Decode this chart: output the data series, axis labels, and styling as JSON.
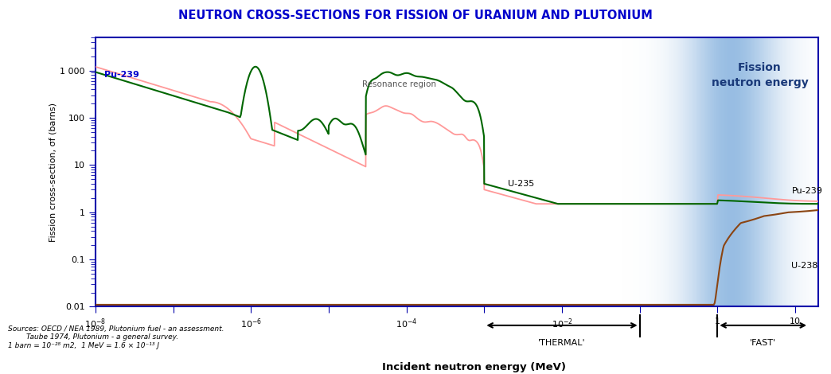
{
  "title": "NEUTRON CROSS-SECTIONS FOR FISSION OF URANIUM AND PLUTONIUM",
  "title_color": "#0000cc",
  "xlabel": "Incident neutron energy (MeV)",
  "ylabel": "Fission cross-section, σf (barns)",
  "background_color": "#ffffff",
  "border_color": "#0000aa",
  "fission_label": "Fission\nneutron energy",
  "thermal_label": "'THERMAL'",
  "fast_label": "'FAST'",
  "resonance_label": "Resonance region",
  "source_text": "Sources: OECD / NEA 1989, Plutonium fuel - an assessment.\n        Taube 1974, Plutonium - a general survey.\n1 barn = 10⁻²⁸ m2,  1 MeV = 1.6 × 10⁻¹³ J",
  "pu239_color": "#ff9999",
  "u235_color": "#006600",
  "u238_color": "#8B4513"
}
